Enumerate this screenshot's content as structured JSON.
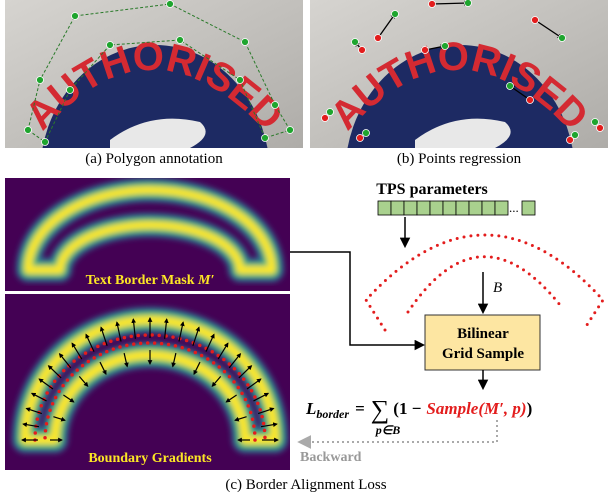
{
  "panel_a": {
    "photo_text": "AUTHORISED",
    "caption": "(a)  Polygon annotation"
  },
  "panel_b": {
    "photo_text": "AUTHORISED",
    "caption": "(b)  Points regression"
  },
  "panel_c": {
    "tps_label": "TPS parameters",
    "ellipsis": "...",
    "points_label": "B",
    "mask_label": "Text Border Mask ",
    "mask_symbol": "M′",
    "gradients_label": "Boundary Gradients",
    "module": [
      "Bilinear",
      "Grid Sample"
    ],
    "formula": {
      "lhs": "L",
      "lhs_sub": "border",
      "equals": "=",
      "sum": "∑",
      "sum_sub": "p∈B",
      "open": "(1 −",
      "sample": "Sample(M′, p)",
      "close": ")"
    },
    "backward": "Backward",
    "caption": "(c)  Border Alignment Loss"
  }
}
